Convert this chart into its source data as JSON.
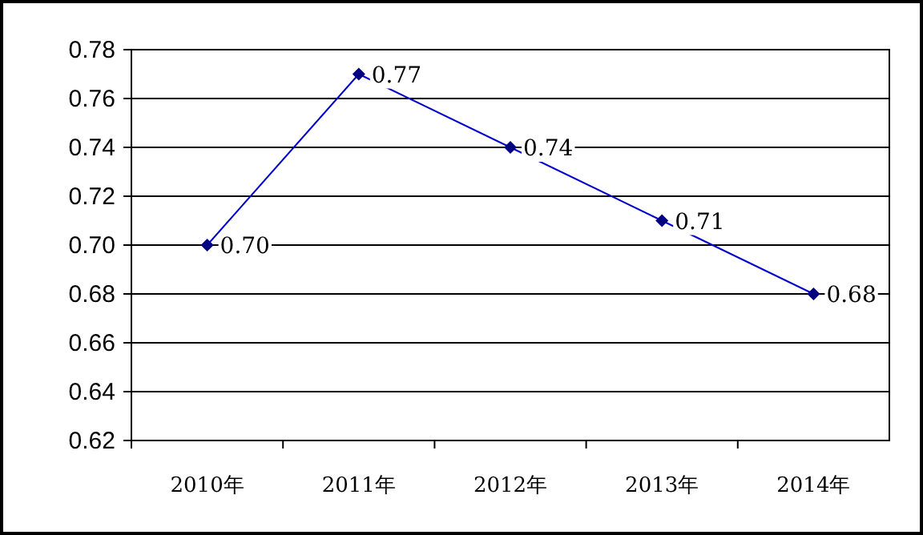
{
  "chart_data": {
    "type": "line",
    "categories": [
      "2010年",
      "2011年",
      "2012年",
      "2013年",
      "2014年"
    ],
    "series": [
      {
        "color": "#000080",
        "values": [
          0.7,
          0.77,
          0.74,
          0.71,
          0.68
        ],
        "value_labels": [
          "0.70",
          "0.77",
          "0.74",
          "0.71",
          "0.68"
        ]
      }
    ],
    "ylim": [
      0.62,
      0.78
    ],
    "yticks": [
      {
        "value": 0.62,
        "label": "0.62"
      },
      {
        "value": 0.64,
        "label": "0.64"
      },
      {
        "value": 0.66,
        "label": "0.66"
      },
      {
        "value": 0.68,
        "label": "0.68"
      },
      {
        "value": 0.7,
        "label": "0.70"
      },
      {
        "value": 0.72,
        "label": "0.72"
      },
      {
        "value": 0.74,
        "label": "0.74"
      },
      {
        "value": 0.76,
        "label": "0.76"
      },
      {
        "value": 0.78,
        "label": "0.78"
      }
    ],
    "grid": "y",
    "marker": "diamond",
    "line_style": "solid"
  }
}
